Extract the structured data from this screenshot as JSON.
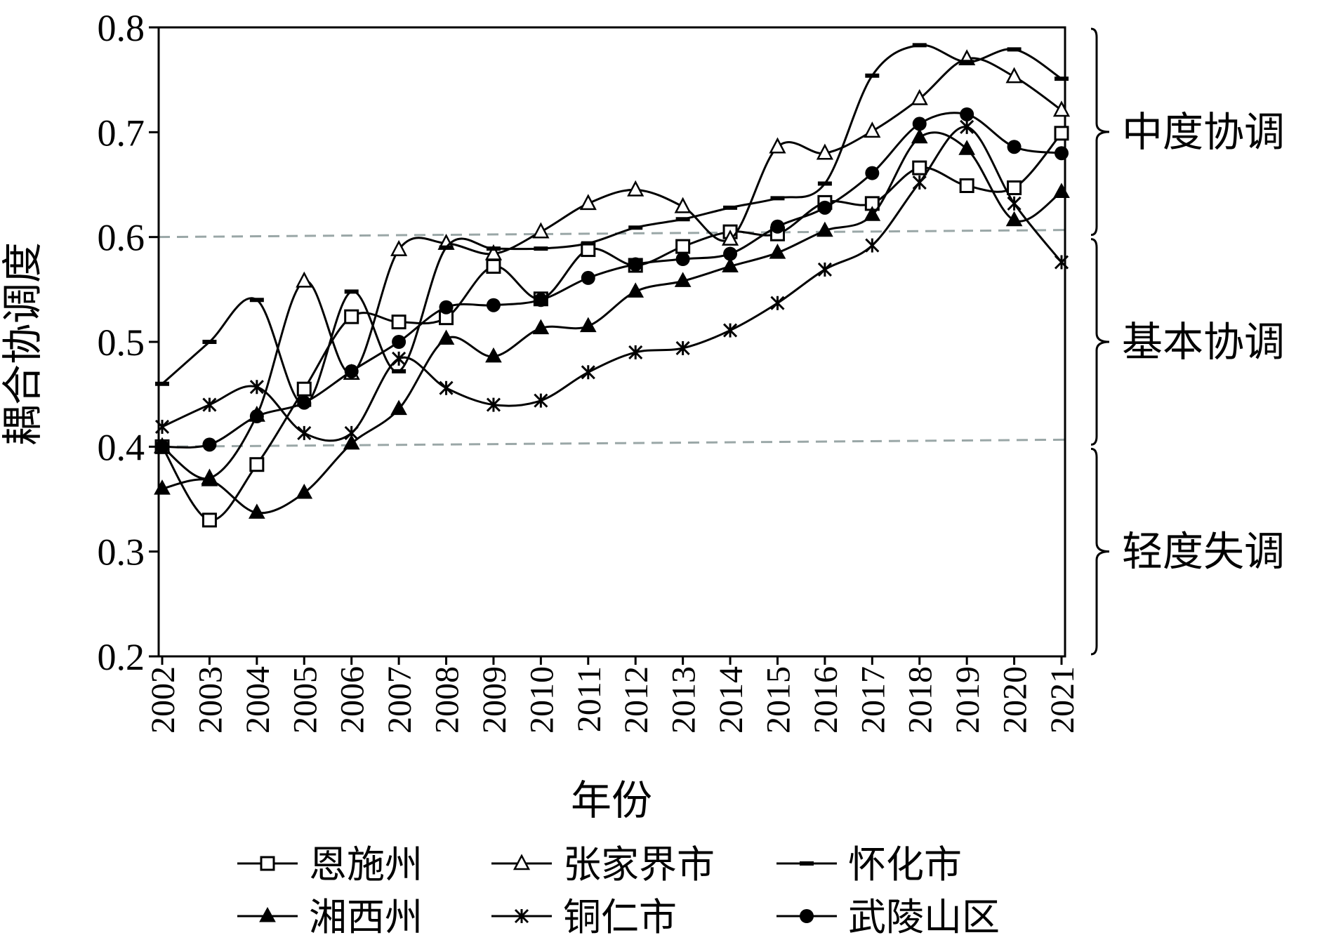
{
  "chart_data": {
    "type": "line",
    "xlabel": "年份",
    "ylabel": "耦合协调度",
    "ylim": [
      0.2,
      0.8
    ],
    "y_ticks": [
      "0.2",
      "0.3",
      "0.4",
      "0.5",
      "0.6",
      "0.7",
      "0.8"
    ],
    "categories": [
      "2002",
      "2003",
      "2004",
      "2005",
      "2006",
      "2007",
      "2008",
      "2009",
      "2010",
      "2011",
      "2012",
      "2013",
      "2014",
      "2015",
      "2016",
      "2017",
      "2018",
      "2019",
      "2020",
      "2021"
    ],
    "series": [
      {
        "name": "恩施州",
        "marker": "square-open",
        "values": [
          0.4,
          0.33,
          0.383,
          0.455,
          0.524,
          0.519,
          0.523,
          0.572,
          0.541,
          0.588,
          0.573,
          0.591,
          0.605,
          0.603,
          0.633,
          0.632,
          0.666,
          0.649,
          0.647,
          0.699
        ]
      },
      {
        "name": "张家界市",
        "marker": "triangle-open",
        "values": [
          0.4,
          0.37,
          0.43,
          0.558,
          0.47,
          0.588,
          0.594,
          0.584,
          0.605,
          0.632,
          0.645,
          0.629,
          0.598,
          0.686,
          0.68,
          0.701,
          0.732,
          0.77,
          0.753,
          0.721
        ]
      },
      {
        "name": "怀化市",
        "marker": "dash",
        "values": [
          0.46,
          0.5,
          0.54,
          0.44,
          0.548,
          0.472,
          0.59,
          0.589,
          0.589,
          0.594,
          0.609,
          0.617,
          0.628,
          0.637,
          0.651,
          0.754,
          0.783,
          0.767,
          0.779,
          0.751
        ]
      },
      {
        "name": "湘西州",
        "marker": "triangle-filled",
        "values": [
          0.36,
          0.368,
          0.337,
          0.356,
          0.403,
          0.436,
          0.503,
          0.486,
          0.513,
          0.515,
          0.548,
          0.558,
          0.572,
          0.585,
          0.606,
          0.621,
          0.695,
          0.684,
          0.616,
          0.643
        ]
      },
      {
        "name": "铜仁市",
        "marker": "cross",
        "values": [
          0.419,
          0.44,
          0.457,
          0.413,
          0.413,
          0.484,
          0.456,
          0.44,
          0.444,
          0.471,
          0.49,
          0.494,
          0.511,
          0.537,
          0.569,
          0.592,
          0.652,
          0.705,
          0.632,
          0.576
        ]
      },
      {
        "name": "武陵山区",
        "marker": "circle-filled",
        "values": [
          0.4,
          0.402,
          0.429,
          0.442,
          0.472,
          0.5,
          0.533,
          0.535,
          0.54,
          0.561,
          0.574,
          0.579,
          0.584,
          0.61,
          0.628,
          0.661,
          0.708,
          0.717,
          0.686,
          0.68
        ]
      }
    ],
    "thresholds": [
      0.4,
      0.6
    ],
    "zones": [
      {
        "label": "中度协调",
        "range": [
          0.6,
          0.8
        ]
      },
      {
        "label": "基本协调",
        "range": [
          0.4,
          0.6
        ]
      },
      {
        "label": "轻度失调",
        "range": [
          0.2,
          0.4
        ]
      }
    ],
    "legend_position": "bottom",
    "grid": false
  },
  "colors": {
    "line": "#000000",
    "threshold": "#9aa7a7",
    "background": "#ffffff"
  }
}
